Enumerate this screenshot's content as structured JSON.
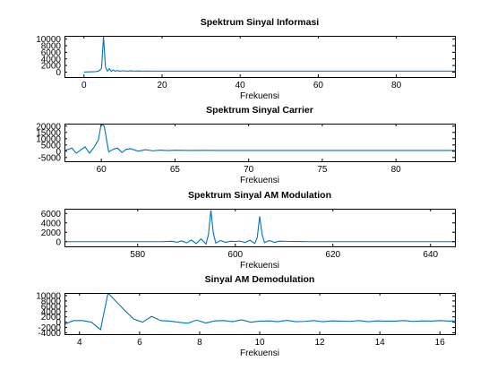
{
  "chart_data": [
    {
      "type": "line",
      "title": "Spektrum Sinyal Informasi",
      "xlabel": "Frekuensi",
      "ylabel": "",
      "xlim": [
        -5,
        95
      ],
      "ylim": [
        -1500,
        11000
      ],
      "xticks": [
        0,
        20,
        40,
        60,
        80
      ],
      "yticks": [
        0,
        2000,
        4000,
        6000,
        8000,
        10000
      ],
      "color": "#0072bd",
      "x": [
        0,
        3,
        3.5,
        4,
        4.5,
        5,
        5.5,
        6,
        6.5,
        7,
        7.5,
        8,
        8.5,
        9,
        10,
        11,
        12,
        13,
        14,
        15,
        16,
        18,
        20,
        25,
        30,
        40,
        50,
        60,
        70,
        80,
        90,
        95
      ],
      "y": [
        0,
        150,
        250,
        500,
        1200,
        10800,
        1500,
        300,
        1000,
        200,
        650,
        250,
        500,
        300,
        400,
        300,
        380,
        300,
        340,
        300,
        320,
        300,
        300,
        300,
        300,
        300,
        300,
        300,
        300,
        300,
        300,
        300
      ]
    },
    {
      "type": "line",
      "title": "Spektrum Sinyal Carrier",
      "xlabel": "Frekuensi",
      "ylabel": "",
      "xlim": [
        57.5,
        84
      ],
      "ylim": [
        -8000,
        22000
      ],
      "xticks": [
        60,
        65,
        70,
        75,
        80
      ],
      "yticks": [
        -5000,
        0,
        5000,
        10000,
        15000,
        20000
      ],
      "color": "#0072bd",
      "x": [
        57.5,
        58,
        58.3,
        58.6,
        58.9,
        59.2,
        59.5,
        59.8,
        60,
        60.2,
        60.5,
        60.8,
        61.1,
        61.4,
        61.7,
        62,
        62.5,
        63,
        63.5,
        64,
        64.5,
        65,
        66,
        67,
        68,
        70,
        72,
        75,
        78,
        81,
        84
      ],
      "y": [
        500,
        2500,
        -1500,
        1000,
        3500,
        -1500,
        3000,
        9000,
        22000,
        20000,
        -500,
        1500,
        2500,
        -1000,
        1500,
        2000,
        0,
        1200,
        300,
        900,
        500,
        800,
        600,
        700,
        600,
        650,
        600,
        600,
        600,
        600,
        600
      ]
    },
    {
      "type": "line",
      "title": "Spektrum Sinyal AM Modulation",
      "xlabel": "Frekuensi",
      "ylabel": "",
      "xlim": [
        565,
        645
      ],
      "ylim": [
        -1000,
        7000
      ],
      "xticks": [
        580,
        600,
        620,
        640
      ],
      "yticks": [
        0,
        2000,
        4000,
        6000
      ],
      "color": "#0072bd",
      "x": [
        565,
        585,
        587,
        588,
        589,
        590,
        591,
        592,
        593,
        594,
        594.5,
        595,
        595.5,
        596,
        597,
        598,
        599,
        600,
        601,
        602,
        603,
        604,
        604.5,
        605,
        605.5,
        606,
        607,
        608,
        609,
        611,
        613,
        615,
        645
      ],
      "y": [
        0,
        0,
        80,
        -120,
        180,
        -250,
        350,
        -400,
        600,
        -500,
        1500,
        6700,
        1800,
        -300,
        250,
        -150,
        80,
        40,
        120,
        -200,
        300,
        -400,
        900,
        5400,
        1500,
        -200,
        250,
        -150,
        100,
        50,
        30,
        0,
        0
      ]
    },
    {
      "type": "line",
      "title": "Sinyal AM Demodulation",
      "xlabel": "Frekuensi",
      "ylabel": "",
      "xlim": [
        3.5,
        16.5
      ],
      "ylim": [
        -4500,
        11000
      ],
      "xticks": [
        4,
        6,
        8,
        10,
        12,
        14,
        16
      ],
      "yticks": [
        -4000,
        -2000,
        0,
        2000,
        4000,
        6000,
        8000,
        10000
      ],
      "color": "#0072bd",
      "x": [
        3.5,
        3.8,
        4.1,
        4.4,
        4.7,
        4.95,
        5.2,
        5.5,
        5.8,
        6.1,
        6.4,
        6.7,
        7.0,
        7.3,
        7.6,
        7.9,
        8.2,
        8.5,
        8.8,
        9.1,
        9.4,
        9.7,
        10.0,
        10.3,
        10.6,
        10.9,
        11.2,
        11.5,
        11.8,
        12.1,
        12.4,
        12.7,
        13.0,
        13.3,
        13.6,
        13.9,
        14.2,
        14.5,
        14.8,
        15.1,
        15.4,
        15.7,
        16.0,
        16.3,
        16.5
      ],
      "y": [
        -800,
        600,
        600,
        0,
        -2800,
        11000,
        8000,
        4500,
        1200,
        0,
        2200,
        600,
        400,
        0,
        -400,
        800,
        -300,
        500,
        600,
        200,
        900,
        0,
        400,
        500,
        200,
        700,
        200,
        300,
        600,
        200,
        500,
        400,
        300,
        600,
        200,
        500,
        400,
        400,
        600,
        300,
        500,
        400,
        600,
        400,
        500
      ]
    }
  ]
}
